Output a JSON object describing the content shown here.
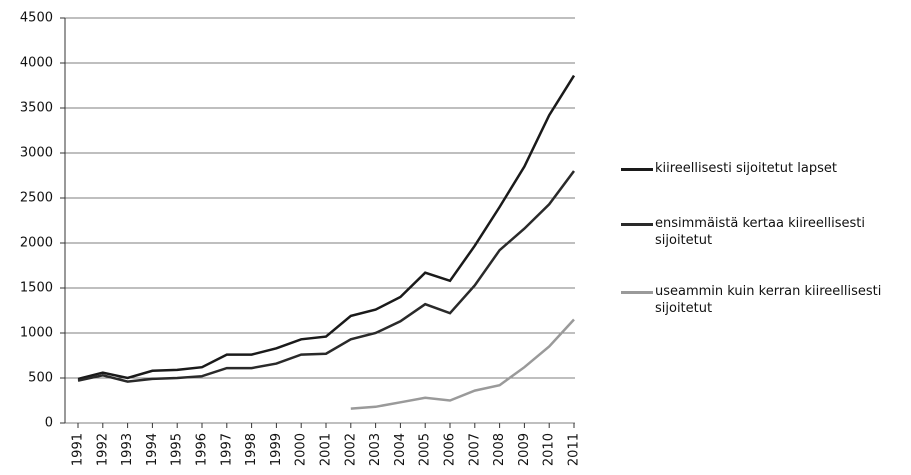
{
  "chart_data": {
    "type": "line",
    "categories": [
      "1991",
      "1992",
      "1993",
      "1994",
      "1995",
      "1996",
      "1997",
      "1998",
      "1999",
      "2000",
      "2001",
      "2002",
      "2003",
      "2004",
      "2005",
      "2006",
      "2007",
      "2008",
      "2009",
      "2010",
      "2011"
    ],
    "series": [
      {
        "name": "kiireellisesti sijoitetut lapset",
        "color": "#1a1a1a",
        "values": [
          490,
          560,
          500,
          580,
          590,
          620,
          760,
          760,
          830,
          930,
          960,
          1190,
          1260,
          1400,
          1670,
          1580,
          1970,
          2400,
          2850,
          3420,
          3860
        ]
      },
      {
        "name": "ensimmäistä kertaa kiireellisesti sijoitetut",
        "color": "#2a2a2a",
        "values": [
          470,
          530,
          460,
          490,
          500,
          520,
          610,
          610,
          660,
          760,
          770,
          930,
          1000,
          1130,
          1320,
          1220,
          1530,
          1920,
          2160,
          2430,
          2800
        ]
      },
      {
        "name": "useammin kuin kerran kiireellisesti sijoitetut",
        "color": "#9a9a9a",
        "values": [
          null,
          null,
          null,
          null,
          null,
          null,
          null,
          null,
          null,
          null,
          null,
          160,
          180,
          230,
          280,
          250,
          360,
          420,
          620,
          850,
          1150
        ]
      }
    ],
    "ylim": [
      0,
      4500
    ],
    "yticks": [
      0,
      500,
      1000,
      1500,
      2000,
      2500,
      3000,
      3500,
      4000,
      4500
    ],
    "grid": true
  }
}
